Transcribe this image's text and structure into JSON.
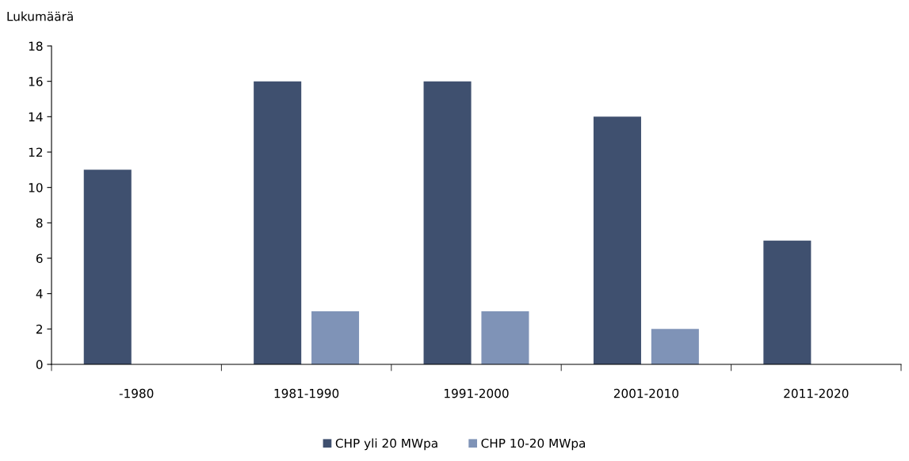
{
  "chart_data": {
    "type": "bar",
    "ylabel": "Lukumäärä",
    "categories": [
      "-1980",
      "1981-1990",
      "1991-2000",
      "2001-2010",
      "2011-2020"
    ],
    "series": [
      {
        "name": "CHP yli 20 MWpa",
        "color": "#3f506f",
        "values": [
          11,
          16,
          16,
          14,
          7
        ]
      },
      {
        "name": "CHP 10-20 MWpa",
        "color": "#7f93b7",
        "values": [
          null,
          3,
          3,
          2,
          null
        ]
      }
    ],
    "ylim": [
      0,
      18
    ],
    "yticks": [
      0,
      2,
      4,
      6,
      8,
      10,
      12,
      14,
      16,
      18
    ],
    "grid": false,
    "legend": "bottom"
  }
}
